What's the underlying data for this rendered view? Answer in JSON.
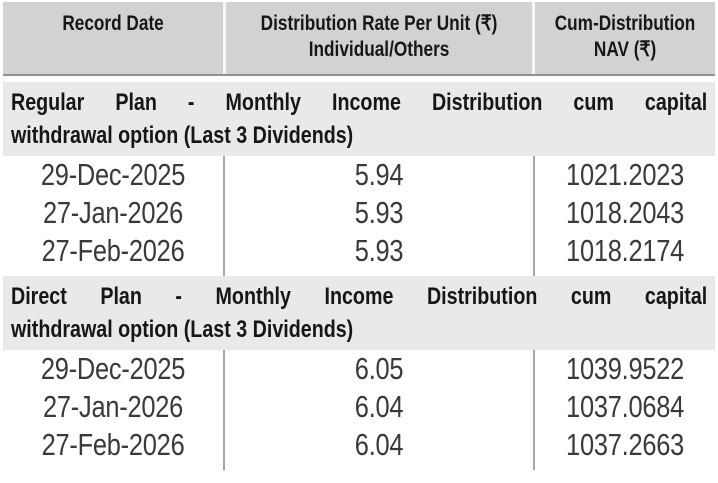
{
  "table": {
    "columns": [
      {
        "line1": "Record Date",
        "line2": ""
      },
      {
        "line1": "Distribution Rate Per Unit (₹)",
        "line2": "Individual/Others"
      },
      {
        "line1": "Cum-Distribution",
        "line2": "NAV (₹)"
      }
    ],
    "sections": [
      {
        "title_line1": "Regular Plan - Monthly Income Distribution cum capital",
        "title_line2": "withdrawal option (Last 3 Dividends)",
        "rows": [
          {
            "record_date": "29-Dec-2025",
            "rate": "5.94",
            "nav": "1021.2023"
          },
          {
            "record_date": "27-Jan-2026",
            "rate": "5.93",
            "nav": "1018.2043"
          },
          {
            "record_date": "27-Feb-2026",
            "rate": "5.93",
            "nav": "1018.2174"
          }
        ]
      },
      {
        "title_line1": "Direct Plan - Monthly Income Distribution cum capital",
        "title_line2": "withdrawal option (Last 3 Dividends)",
        "rows": [
          {
            "record_date": "29-Dec-2025",
            "rate": "6.05",
            "nav": "1039.9522"
          },
          {
            "record_date": "27-Jan-2026",
            "rate": "6.04",
            "nav": "1037.0684"
          },
          {
            "record_date": "27-Feb-2026",
            "rate": "6.04",
            "nav": "1037.2663"
          }
        ]
      }
    ]
  },
  "colors": {
    "header_bg": "#d2d2d2",
    "section_bg": "#e9e9e9",
    "divider": "#a6a6a6",
    "header_underline": "#919191",
    "data_text": "#3a3a3a",
    "heading_text": "#161616"
  }
}
